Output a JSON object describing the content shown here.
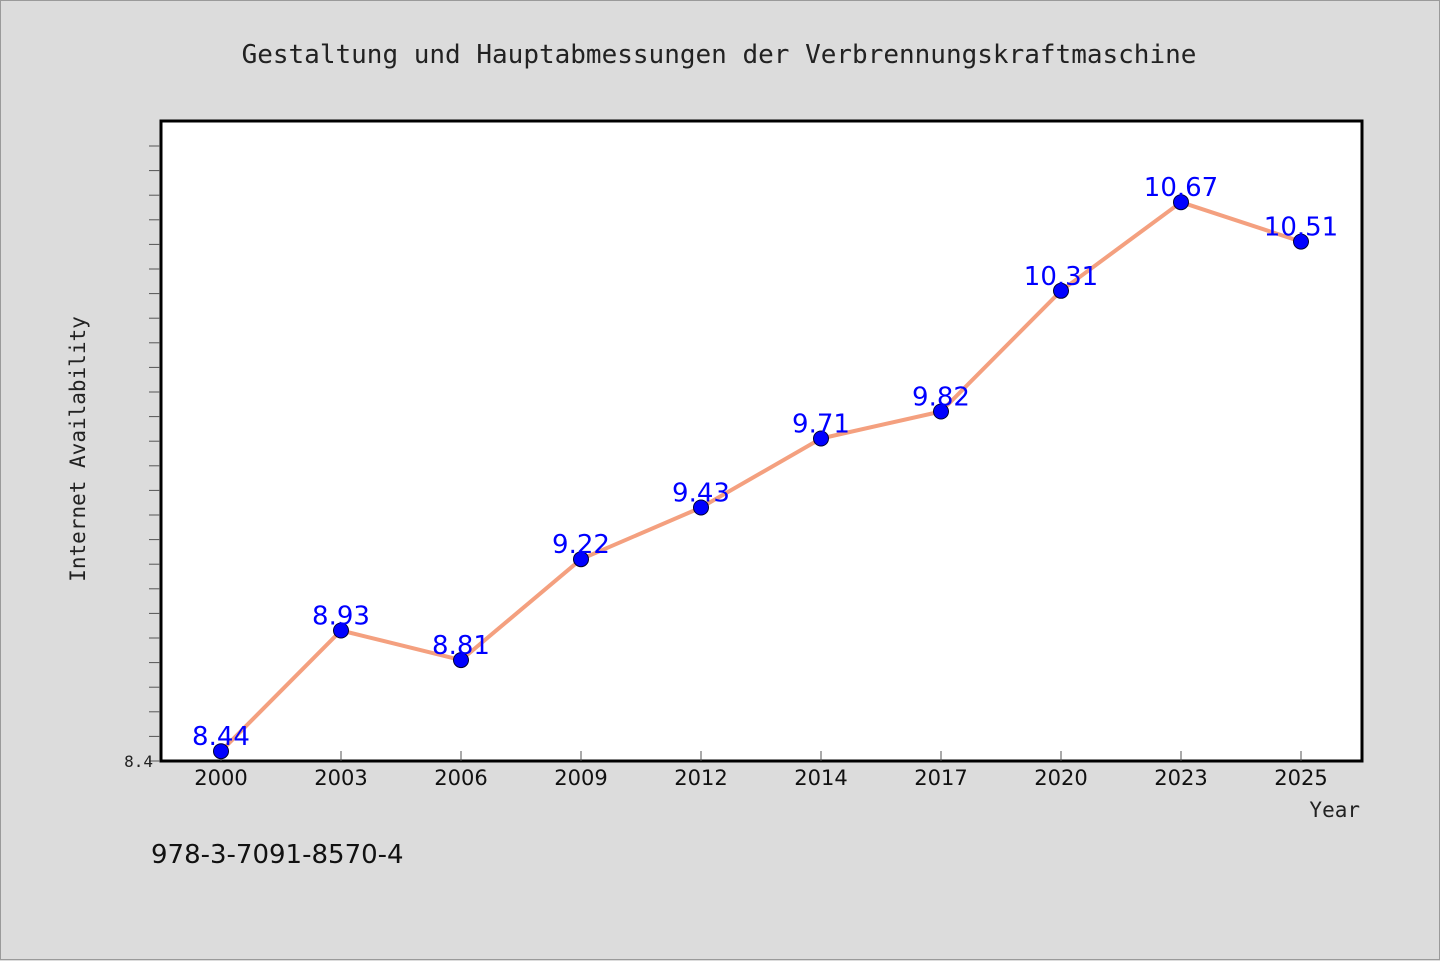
{
  "chart_data": {
    "type": "line",
    "title": "Gestaltung und Hauptabmessungen der Verbrennungskraftmaschine",
    "xlabel": "Year",
    "ylabel": "Internet Availability",
    "categories": [
      "2000",
      "2003",
      "2006",
      "2009",
      "2012",
      "2014",
      "2017",
      "2020",
      "2023",
      "2025"
    ],
    "values": [
      8.44,
      8.93,
      8.81,
      9.22,
      9.43,
      9.71,
      9.82,
      10.31,
      10.67,
      10.51
    ],
    "data_labels": [
      "8.44",
      "8.93",
      "8.81",
      "9.22",
      "9.43",
      "9.71",
      "9.82",
      "10.31",
      "10.67",
      "10.51"
    ],
    "ylim": [
      8.4,
      11.0
    ],
    "yticks": [
      8.4
    ],
    "ytick_labels": [
      "8.4"
    ],
    "line_color": "#f4a07f",
    "marker_color": "#0000ff",
    "label_color": "#0000ff",
    "grid": false,
    "legend": "none"
  },
  "footer": {
    "isbn": "978-3-7091-8570-4"
  }
}
